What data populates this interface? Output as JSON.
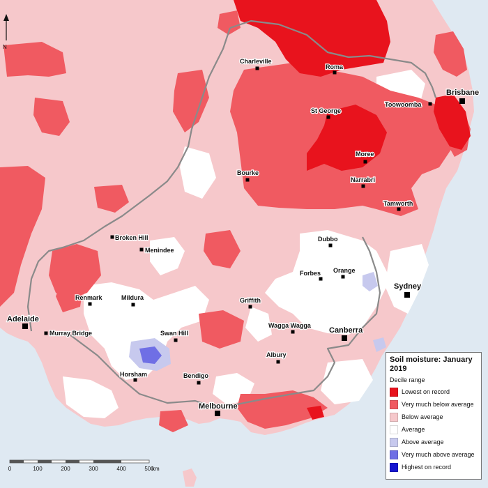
{
  "legend": {
    "title": "Soil moisture: January 2019",
    "subtitle": "Decile range",
    "items": [
      {
        "label": "Lowest on record",
        "color": "#e8131d"
      },
      {
        "label": "Very much below average",
        "color": "#f05a61"
      },
      {
        "label": "Below average",
        "color": "#f6c8cb"
      },
      {
        "label": "Average",
        "color": "#ffffff"
      },
      {
        "label": "Above average",
        "color": "#c7c9ee"
      },
      {
        "label": "Very much above average",
        "color": "#6f6fe5"
      },
      {
        "label": "Highest on record",
        "color": "#1515d0"
      }
    ]
  },
  "scale": {
    "ticks": [
      "0",
      "100",
      "200",
      "300",
      "400",
      "500"
    ],
    "unit": "km"
  },
  "north_symbol": "N",
  "towns": [
    {
      "name": "Charleville"
    },
    {
      "name": "Roma"
    },
    {
      "name": "Brisbane"
    },
    {
      "name": "Toowoomba"
    },
    {
      "name": "St George"
    },
    {
      "name": "Moree"
    },
    {
      "name": "Bourke"
    },
    {
      "name": "Narrabri"
    },
    {
      "name": "Tamworth"
    },
    {
      "name": "Broken Hill"
    },
    {
      "name": "Menindee"
    },
    {
      "name": "Dubbo"
    },
    {
      "name": "Forbes"
    },
    {
      "name": "Orange"
    },
    {
      "name": "Sydney"
    },
    {
      "name": "Renmark"
    },
    {
      "name": "Mildura"
    },
    {
      "name": "Griffith"
    },
    {
      "name": "Adelaide"
    },
    {
      "name": "Murray Bridge"
    },
    {
      "name": "Swan Hill"
    },
    {
      "name": "Wagga Wagga"
    },
    {
      "name": "Canberra"
    },
    {
      "name": "Albury"
    },
    {
      "name": "Horsham"
    },
    {
      "name": "Bendigo"
    },
    {
      "name": "Melbourne"
    }
  ],
  "colors": {
    "ocean": "#dfe9f2",
    "below_average": "#f6c8cb",
    "very_much_below": "#f05a61",
    "lowest_on_record": "#e8131d",
    "average": "#ffffff",
    "above_average": "#c7c9ee",
    "very_much_above": "#6f6fe5",
    "boundary": "#8a8a8a"
  }
}
